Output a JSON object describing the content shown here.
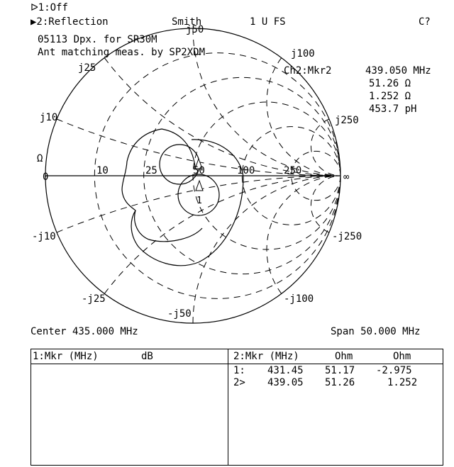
{
  "header": {
    "ch1": "ᐅ1:Off",
    "ch2": "▶2:Reflection",
    "format": "Smith",
    "scale": "1 U FS",
    "cal": "C?"
  },
  "title_lines": [
    "05113 Dpx. for SR30M",
    "Ant matching meas. by SP2XDM"
  ],
  "marker_readout": {
    "label": "Ch2:Mkr2",
    "freq": "439.050 MHz",
    "resistance": "51.26 Ω",
    "reactance": "1.252 Ω",
    "equiv": "453.7 pH"
  },
  "chart_data": {
    "type": "smith",
    "reference_impedance_ohm": 50,
    "grid_labels": {
      "resistance": [
        "0",
        "10",
        "25",
        "50",
        "100",
        "250",
        "∞"
      ],
      "reactance_pos": [
        "j10",
        "j25",
        "j50",
        "j100",
        "j250"
      ],
      "reactance_neg": [
        "-j10",
        "-j25",
        "-j50",
        "-j100",
        "-j250"
      ],
      "unit": "Ω"
    },
    "markers": [
      {
        "id": "1",
        "freq_mhz": 431.45,
        "r_ohm": 51.17,
        "x_ohm": -2.975
      },
      {
        "id": "2",
        "freq_mhz": 439.05,
        "r_ohm": 51.26,
        "x_ohm": 1.252
      }
    ],
    "grid": true
  },
  "footer": {
    "center": "Center 435.000 MHz",
    "span": "Span 50.000 MHz"
  },
  "table": {
    "left_header": [
      "1:Mkr (MHz)",
      "dB"
    ],
    "right_header": [
      "2:Mkr (MHz)",
      "Ohm",
      "Ohm"
    ],
    "rows": [
      [
        "1:",
        "431.45",
        "51.17",
        "-2.975"
      ],
      [
        "2>",
        "439.05",
        "51.26",
        "1.252"
      ]
    ]
  }
}
